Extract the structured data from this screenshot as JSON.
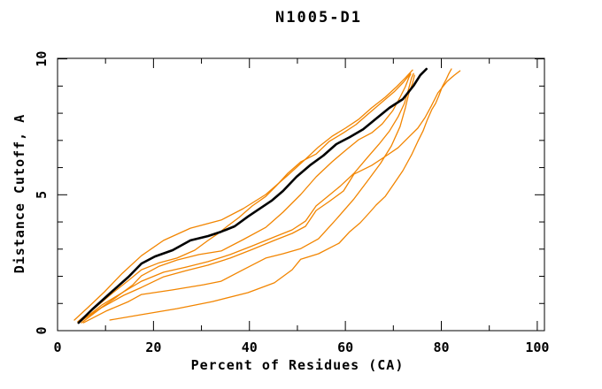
{
  "title": "N1005-D1",
  "chart_data": {
    "type": "line",
    "title": "N1005-D1",
    "xlabel": "Percent of Residues (CA)",
    "ylabel": "Distance Cutoff, A",
    "xlim": [
      0,
      101.5
    ],
    "ylim": [
      0,
      10.02
    ],
    "x_major_ticks": [
      0,
      20,
      40,
      60,
      80,
      100
    ],
    "x_minor_ticks": [
      10,
      30,
      50,
      70,
      90
    ],
    "y_major_ticks": [
      0,
      5,
      10
    ],
    "y_minor_ticks": [
      1,
      2,
      3,
      4,
      6,
      7,
      8,
      9
    ],
    "grid": false,
    "legend_position": "none",
    "colors": {
      "model": "#f28500",
      "reference": "#000000"
    },
    "series": [
      {
        "name": "model-curve-1",
        "role": "model",
        "color": "#f28500",
        "points": [
          [
            3.5,
            0.39
          ],
          [
            6.5,
            0.88
          ],
          [
            9.8,
            1.43
          ],
          [
            13.5,
            2.11
          ],
          [
            17.5,
            2.76
          ],
          [
            22.1,
            3.32
          ],
          [
            27.7,
            3.77
          ],
          [
            34.1,
            4.07
          ],
          [
            38.7,
            4.49
          ],
          [
            43.4,
            5.01
          ],
          [
            48.0,
            5.72
          ],
          [
            51.7,
            6.31
          ],
          [
            54.4,
            6.76
          ],
          [
            57.2,
            7.15
          ],
          [
            60.0,
            7.45
          ],
          [
            62.7,
            7.77
          ],
          [
            65.5,
            8.2
          ],
          [
            68.3,
            8.59
          ],
          [
            70.7,
            8.98
          ],
          [
            72.5,
            9.3
          ],
          [
            74.0,
            9.59
          ]
        ]
      },
      {
        "name": "model-curve-2",
        "role": "model",
        "color": "#f28500",
        "points": [
          [
            4.2,
            0.33
          ],
          [
            7.4,
            0.78
          ],
          [
            11.1,
            1.33
          ],
          [
            14.8,
            1.85
          ],
          [
            17.5,
            2.24
          ],
          [
            21.2,
            2.5
          ],
          [
            24.9,
            2.67
          ],
          [
            28.6,
            2.96
          ],
          [
            31.4,
            3.32
          ],
          [
            33.2,
            3.54
          ],
          [
            35.6,
            3.87
          ],
          [
            37.8,
            4.16
          ],
          [
            40.6,
            4.59
          ],
          [
            43.4,
            4.94
          ],
          [
            45.6,
            5.33
          ],
          [
            48.0,
            5.79
          ],
          [
            50.7,
            6.21
          ],
          [
            53.9,
            6.5
          ],
          [
            56.6,
            6.96
          ],
          [
            59.6,
            7.28
          ],
          [
            62.2,
            7.58
          ],
          [
            65.1,
            8.03
          ],
          [
            67.7,
            8.42
          ],
          [
            70.3,
            8.81
          ],
          [
            72.1,
            9.14
          ],
          [
            73.6,
            9.46
          ]
        ]
      },
      {
        "name": "model-curve-3",
        "role": "model",
        "color": "#f28500",
        "points": [
          [
            4.6,
            0.33
          ],
          [
            8.3,
            0.75
          ],
          [
            12.0,
            1.2
          ],
          [
            15.7,
            1.69
          ],
          [
            17.5,
            2.02
          ],
          [
            21.2,
            2.37
          ],
          [
            24.9,
            2.6
          ],
          [
            29.5,
            2.8
          ],
          [
            34.1,
            2.93
          ],
          [
            38.7,
            3.35
          ],
          [
            43.4,
            3.8
          ],
          [
            47.0,
            4.36
          ],
          [
            50.7,
            5.01
          ],
          [
            53.9,
            5.66
          ],
          [
            57.2,
            6.21
          ],
          [
            60.0,
            6.63
          ],
          [
            62.7,
            7.02
          ],
          [
            65.5,
            7.28
          ],
          [
            67.7,
            7.61
          ],
          [
            69.9,
            8.1
          ],
          [
            71.4,
            8.59
          ],
          [
            72.5,
            8.98
          ],
          [
            73.2,
            9.3
          ],
          [
            73.6,
            9.43
          ]
        ]
      },
      {
        "name": "model-curve-4",
        "role": "model",
        "color": "#f28500",
        "points": [
          [
            4.8,
            0.33
          ],
          [
            9.2,
            0.94
          ],
          [
            13.8,
            1.43
          ],
          [
            17.5,
            1.82
          ],
          [
            22.1,
            2.15
          ],
          [
            26.8,
            2.34
          ],
          [
            31.4,
            2.54
          ],
          [
            36.0,
            2.8
          ],
          [
            40.6,
            3.12
          ],
          [
            45.2,
            3.45
          ],
          [
            48.9,
            3.71
          ],
          [
            51.7,
            4.03
          ],
          [
            53.9,
            4.59
          ],
          [
            56.3,
            4.94
          ],
          [
            59.0,
            5.33
          ],
          [
            61.8,
            5.79
          ],
          [
            64.6,
            6.37
          ],
          [
            67.0,
            6.86
          ],
          [
            69.2,
            7.35
          ],
          [
            71.0,
            7.87
          ],
          [
            72.3,
            8.36
          ],
          [
            73.2,
            8.91
          ],
          [
            73.8,
            9.3
          ],
          [
            74.2,
            9.46
          ]
        ]
      },
      {
        "name": "model-curve-5",
        "role": "model",
        "color": "#f28500",
        "points": [
          [
            5.0,
            0.29
          ],
          [
            9.2,
            0.85
          ],
          [
            13.8,
            1.3
          ],
          [
            17.5,
            1.59
          ],
          [
            22.1,
            1.98
          ],
          [
            26.8,
            2.21
          ],
          [
            31.4,
            2.41
          ],
          [
            36.0,
            2.67
          ],
          [
            40.6,
            2.99
          ],
          [
            45.2,
            3.32
          ],
          [
            48.9,
            3.58
          ],
          [
            51.7,
            3.84
          ],
          [
            53.9,
            4.42
          ],
          [
            56.6,
            4.75
          ],
          [
            59.6,
            5.14
          ],
          [
            61.8,
            5.76
          ],
          [
            65.5,
            6.08
          ],
          [
            68.3,
            6.41
          ],
          [
            71.0,
            6.73
          ],
          [
            73.2,
            7.12
          ],
          [
            75.1,
            7.45
          ],
          [
            76.6,
            7.84
          ],
          [
            77.9,
            8.26
          ],
          [
            79.3,
            8.75
          ],
          [
            81.2,
            9.17
          ],
          [
            82.7,
            9.4
          ],
          [
            83.9,
            9.56
          ]
        ]
      },
      {
        "name": "model-curve-6",
        "role": "model",
        "color": "#f28500",
        "points": [
          [
            5.4,
            0.29
          ],
          [
            10.1,
            0.72
          ],
          [
            14.8,
            1.07
          ],
          [
            17.5,
            1.33
          ],
          [
            24.0,
            1.5
          ],
          [
            30.4,
            1.69
          ],
          [
            34.1,
            1.82
          ],
          [
            38.7,
            2.24
          ],
          [
            43.4,
            2.67
          ],
          [
            47.0,
            2.83
          ],
          [
            50.7,
            3.02
          ],
          [
            54.4,
            3.38
          ],
          [
            58.1,
            4.1
          ],
          [
            61.8,
            4.85
          ],
          [
            64.6,
            5.5
          ],
          [
            67.3,
            6.15
          ],
          [
            69.6,
            6.8
          ],
          [
            71.4,
            7.51
          ],
          [
            72.5,
            8.2
          ],
          [
            73.2,
            8.72
          ],
          [
            74.0,
            9.11
          ],
          [
            74.4,
            9.4
          ]
        ]
      },
      {
        "name": "model-curve-7",
        "role": "model",
        "color": "#f28500",
        "points": [
          [
            10.9,
            0.39
          ],
          [
            17.5,
            0.59
          ],
          [
            24.9,
            0.81
          ],
          [
            32.3,
            1.07
          ],
          [
            39.7,
            1.4
          ],
          [
            45.2,
            1.76
          ],
          [
            48.9,
            2.24
          ],
          [
            50.7,
            2.63
          ],
          [
            54.4,
            2.83
          ],
          [
            58.7,
            3.22
          ],
          [
            60.9,
            3.64
          ],
          [
            63.1,
            3.97
          ],
          [
            65.1,
            4.36
          ],
          [
            66.4,
            4.62
          ],
          [
            68.3,
            4.94
          ],
          [
            70.1,
            5.4
          ],
          [
            72.0,
            5.89
          ],
          [
            73.8,
            6.47
          ],
          [
            75.1,
            6.96
          ],
          [
            76.2,
            7.35
          ],
          [
            77.1,
            7.77
          ],
          [
            78.0,
            8.13
          ],
          [
            78.8,
            8.36
          ],
          [
            79.5,
            8.65
          ],
          [
            80.2,
            8.98
          ],
          [
            81.0,
            9.24
          ],
          [
            81.5,
            9.43
          ],
          [
            82.1,
            9.63
          ]
        ]
      },
      {
        "name": "reference-curve",
        "role": "reference",
        "color": "#000000",
        "points": [
          [
            4.4,
            0.29
          ],
          [
            7.4,
            0.81
          ],
          [
            11.1,
            1.4
          ],
          [
            14.8,
            1.98
          ],
          [
            17.5,
            2.47
          ],
          [
            20.3,
            2.73
          ],
          [
            24.0,
            2.96
          ],
          [
            27.7,
            3.32
          ],
          [
            31.4,
            3.48
          ],
          [
            34.1,
            3.64
          ],
          [
            36.9,
            3.84
          ],
          [
            39.7,
            4.2
          ],
          [
            42.4,
            4.52
          ],
          [
            44.6,
            4.78
          ],
          [
            47.0,
            5.14
          ],
          [
            49.8,
            5.66
          ],
          [
            52.6,
            6.08
          ],
          [
            55.4,
            6.44
          ],
          [
            58.1,
            6.86
          ],
          [
            60.9,
            7.12
          ],
          [
            63.7,
            7.41
          ],
          [
            66.4,
            7.8
          ],
          [
            69.2,
            8.2
          ],
          [
            72.0,
            8.52
          ],
          [
            74.2,
            9.01
          ],
          [
            75.6,
            9.4
          ],
          [
            76.9,
            9.63
          ]
        ]
      }
    ]
  }
}
